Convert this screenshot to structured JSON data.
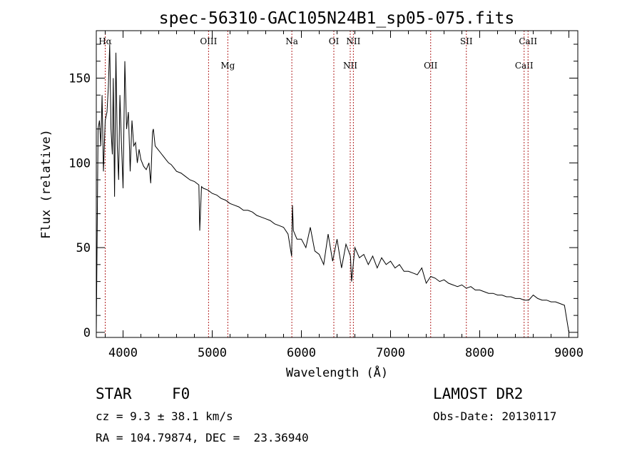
{
  "chart_data": {
    "type": "line",
    "title": "spec-56310-GAC105N24B1_sp05-075.fits",
    "xlabel": "Wavelength (Å)",
    "ylabel": "Flux (relative)",
    "xlim": [
      3700,
      9100
    ],
    "ylim": [
      -3,
      178
    ],
    "x_ticks": [
      4000,
      5000,
      6000,
      7000,
      8000,
      9000
    ],
    "y_ticks": [
      0,
      50,
      100,
      150
    ],
    "x_tick_labels": [
      "4000",
      "5000",
      "6000",
      "7000",
      "8000",
      "9000"
    ],
    "y_tick_labels": [
      "0",
      "50",
      "100",
      "150"
    ],
    "grid": false,
    "line_color": "#000000",
    "marker_color": "#b22222",
    "spectrum": {
      "x": [
        3700,
        3720,
        3735,
        3750,
        3765,
        3780,
        3800,
        3820,
        3835,
        3850,
        3865,
        3880,
        3890,
        3905,
        3920,
        3935,
        3950,
        3965,
        3980,
        4000,
        4020,
        4040,
        4060,
        4080,
        4100,
        4120,
        4140,
        4160,
        4180,
        4200,
        4230,
        4260,
        4290,
        4310,
        4330,
        4340,
        4360,
        4390,
        4420,
        4450,
        4480,
        4510,
        4540,
        4570,
        4600,
        4650,
        4700,
        4750,
        4800,
        4850,
        4860,
        4880,
        4900,
        4950,
        5000,
        5050,
        5100,
        5150,
        5200,
        5250,
        5300,
        5350,
        5400,
        5450,
        5500,
        5550,
        5600,
        5650,
        5700,
        5750,
        5800,
        5850,
        5890,
        5900,
        5910,
        5950,
        6000,
        6050,
        6100,
        6150,
        6200,
        6250,
        6300,
        6350,
        6400,
        6450,
        6500,
        6550,
        6563,
        6600,
        6650,
        6700,
        6750,
        6800,
        6850,
        6900,
        6950,
        7000,
        7050,
        7100,
        7150,
        7200,
        7250,
        7300,
        7350,
        7400,
        7450,
        7500,
        7550,
        7600,
        7650,
        7700,
        7750,
        7800,
        7850,
        7900,
        7950,
        8000,
        8050,
        8100,
        8150,
        8200,
        8250,
        8300,
        8350,
        8400,
        8450,
        8500,
        8550,
        8600,
        8650,
        8700,
        8750,
        8800,
        8850,
        8900,
        8950,
        9000
      ],
      "y": [
        0,
        120,
        125,
        110,
        140,
        95,
        125,
        130,
        145,
        170,
        120,
        105,
        150,
        80,
        165,
        110,
        90,
        140,
        115,
        85,
        160,
        120,
        130,
        95,
        125,
        110,
        112,
        100,
        108,
        102,
        98,
        96,
        100,
        88,
        118,
        120,
        110,
        108,
        106,
        104,
        102,
        100,
        99,
        97,
        95,
        94,
        92,
        90,
        89,
        87,
        60,
        86,
        85,
        84,
        82,
        81,
        79,
        78,
        76,
        75,
        74,
        72,
        72,
        71,
        69,
        68,
        67,
        66,
        64,
        63,
        62,
        58,
        45,
        75,
        60,
        55,
        55,
        50,
        62,
        48,
        46,
        40,
        58,
        42,
        55,
        38,
        52,
        45,
        30,
        50,
        44,
        46,
        40,
        45,
        38,
        44,
        40,
        42,
        38,
        40,
        36,
        36,
        35,
        34,
        38,
        29,
        33,
        32,
        30,
        31,
        29,
        28,
        27,
        28,
        26,
        27,
        25,
        25,
        24,
        23,
        23,
        22,
        22,
        21,
        21,
        20,
        20,
        19,
        19,
        22,
        20,
        19,
        19,
        18,
        18,
        17,
        16,
        0
      ]
    },
    "line_markers": [
      {
        "label": "Hα",
        "wavelength": 3800,
        "row": 0
      },
      {
        "label": "OIII",
        "wavelength": 4959,
        "row": 0
      },
      {
        "label": "Mg",
        "wavelength": 5175,
        "row": 1
      },
      {
        "label": "Na",
        "wavelength": 5893,
        "row": 0
      },
      {
        "label": "OI",
        "wavelength": 6364,
        "row": 0
      },
      {
        "label": "NII",
        "wavelength": 6548,
        "row": 1
      },
      {
        "label": "NII",
        "wavelength": 6583,
        "row": 0
      },
      {
        "label": "OII",
        "wavelength": 7450,
        "row": 1
      },
      {
        "label": "SII",
        "wavelength": 7850,
        "row": 0
      },
      {
        "label": "CaII",
        "wavelength": 8498,
        "row": 1
      },
      {
        "label": "CaII",
        "wavelength": 8542,
        "row": 0
      }
    ]
  },
  "info": {
    "object_class": "STAR",
    "subclass": "F0",
    "redshift": "cz = 9.3 ± 38.1 km/s",
    "coords": "RA = 104.79874, DEC =  23.36940",
    "survey": "LAMOST DR2",
    "obs_date": "Obs-Date: 20130117"
  }
}
